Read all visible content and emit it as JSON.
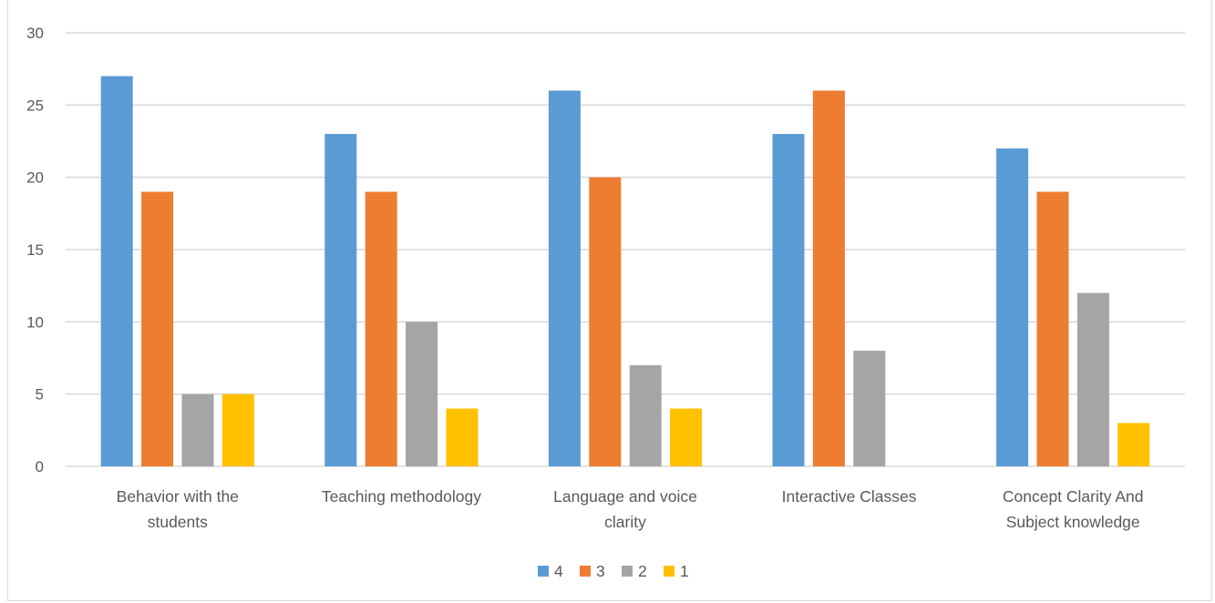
{
  "chart_data": {
    "type": "bar",
    "categories": [
      [
        "Behavior with the",
        "students"
      ],
      [
        "Teaching methodology"
      ],
      [
        "Language and voice",
        "clarity"
      ],
      [
        "Interactive Classes"
      ],
      [
        "Concept Clarity And",
        "Subject knowledge"
      ]
    ],
    "series": [
      {
        "name": "4",
        "color": "#5b9bd5",
        "values": [
          27,
          23,
          26,
          23,
          22
        ]
      },
      {
        "name": "3",
        "color": "#ed7d31",
        "values": [
          19,
          19,
          20,
          26,
          19
        ]
      },
      {
        "name": "2",
        "color": "#a5a5a5",
        "values": [
          5,
          10,
          7,
          8,
          12
        ]
      },
      {
        "name": "1",
        "color": "#ffc000",
        "values": [
          5,
          4,
          4,
          0,
          3
        ]
      }
    ],
    "ylim": [
      0,
      30
    ],
    "yticks": [
      0,
      5,
      10,
      15,
      20,
      25,
      30
    ],
    "grid": true,
    "legend": "bottom",
    "gridColor": "#d9d9d9"
  }
}
